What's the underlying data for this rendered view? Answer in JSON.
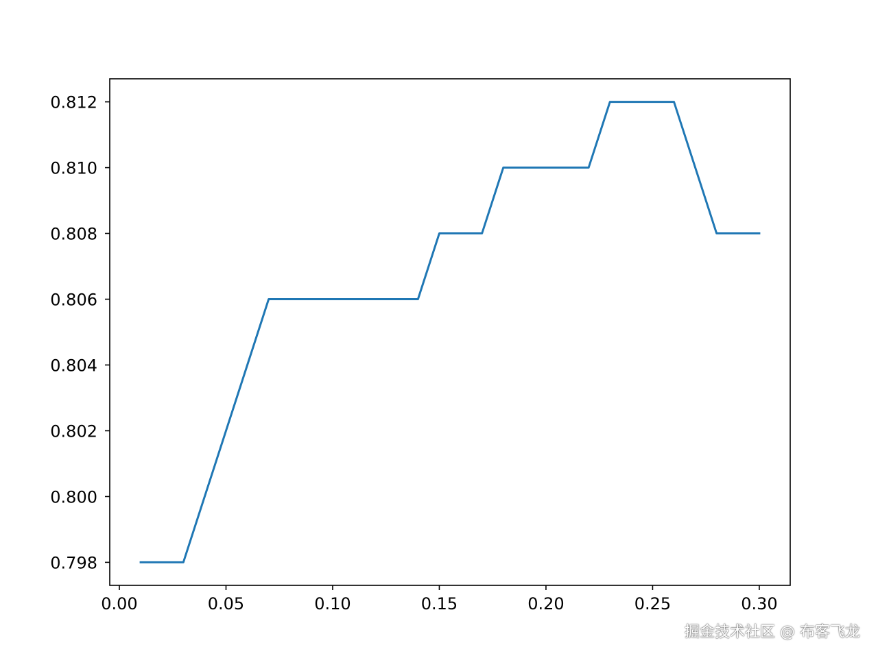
{
  "chart_data": {
    "type": "line",
    "x": [
      0.01,
      0.02,
      0.03,
      0.04,
      0.05,
      0.06,
      0.07,
      0.08,
      0.09,
      0.1,
      0.11,
      0.12,
      0.13,
      0.14,
      0.15,
      0.16,
      0.17,
      0.18,
      0.19,
      0.2,
      0.21,
      0.22,
      0.23,
      0.24,
      0.25,
      0.26,
      0.27,
      0.28,
      0.29,
      0.3
    ],
    "series": [
      {
        "values": [
          0.798,
          0.798,
          0.798,
          0.8,
          0.802,
          0.804,
          0.806,
          0.806,
          0.806,
          0.806,
          0.806,
          0.806,
          0.806,
          0.806,
          0.808,
          0.808,
          0.808,
          0.81,
          0.81,
          0.81,
          0.81,
          0.81,
          0.812,
          0.812,
          0.812,
          0.812,
          0.81,
          0.808,
          0.808,
          0.808
        ],
        "color": "#1f77b4"
      }
    ],
    "title": "",
    "xlabel": "",
    "ylabel": "",
    "xlim": [
      -0.0045,
      0.3145
    ],
    "ylim": [
      0.7973,
      0.8127
    ],
    "xticks": [
      0.0,
      0.05,
      0.1,
      0.15,
      0.2,
      0.25,
      0.3
    ],
    "xtick_labels": [
      "0.00",
      "0.05",
      "0.10",
      "0.15",
      "0.20",
      "0.25",
      "0.30"
    ],
    "yticks": [
      0.798,
      0.8,
      0.802,
      0.804,
      0.806,
      0.808,
      0.81,
      0.812
    ],
    "ytick_labels": [
      "0.798",
      "0.800",
      "0.802",
      "0.804",
      "0.806",
      "0.808",
      "0.810",
      "0.812"
    ],
    "grid": false,
    "legend": "none"
  },
  "watermark": "掘金技术社区 @ 布客飞龙"
}
